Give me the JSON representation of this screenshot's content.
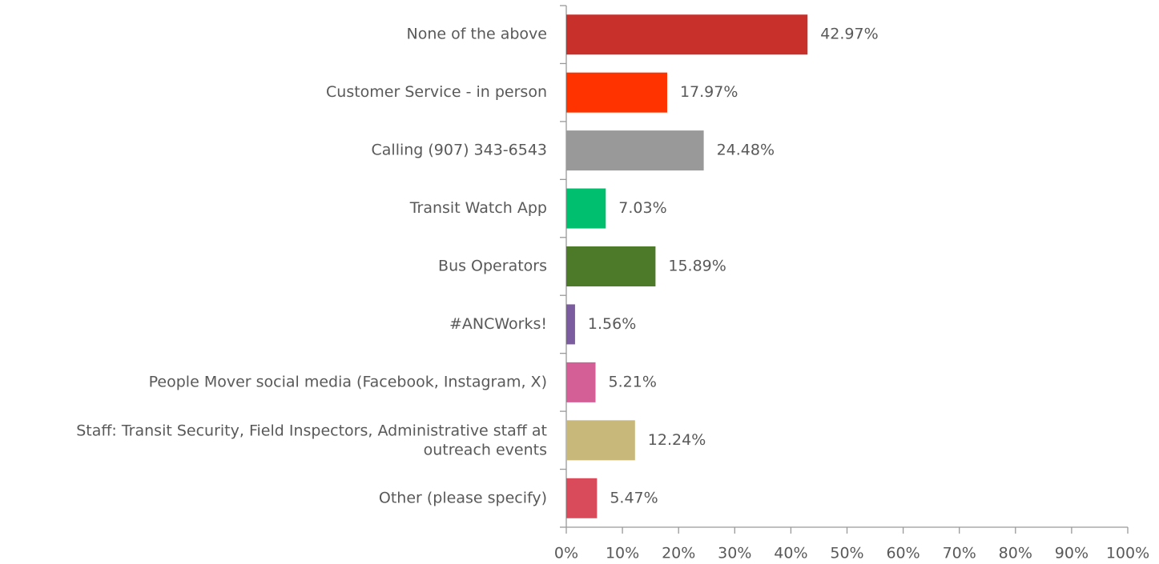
{
  "chart_data": {
    "type": "bar",
    "orientation": "horizontal",
    "categories": [
      "None of the above",
      "Customer Service - in person",
      "Calling (907) 343-6543",
      "Transit Watch App",
      "Bus Operators",
      "#ANCWorks!",
      "People Mover social media (Facebook, Instagram, X)",
      "Staff: Transit Security, Field Inspectors, Administrative staff at outreach events",
      "Other (please specify)"
    ],
    "values": [
      42.97,
      17.97,
      24.48,
      7.03,
      15.89,
      1.56,
      5.21,
      12.24,
      5.47
    ],
    "value_labels": [
      "42.97%",
      "17.97%",
      "24.48%",
      "7.03%",
      "15.89%",
      "1.56%",
      "5.21%",
      "12.24%",
      "5.47%"
    ],
    "colors": [
      "#c8312b",
      "#ff3300",
      "#999999",
      "#00bf6f",
      "#4d7a28",
      "#7b5c9e",
      "#d45f97",
      "#c8b87a",
      "#d94a5a"
    ],
    "xlim": [
      0,
      100
    ],
    "xticks": [
      {
        "value": 0,
        "label": "0%"
      },
      {
        "value": 10,
        "label": "10%"
      },
      {
        "value": 20,
        "label": "20%"
      },
      {
        "value": 30,
        "label": "30%"
      },
      {
        "value": 40,
        "label": "40%"
      },
      {
        "value": 50,
        "label": "50%"
      },
      {
        "value": 60,
        "label": "60%"
      },
      {
        "value": 70,
        "label": "70%"
      },
      {
        "value": 80,
        "label": "80%"
      },
      {
        "value": 90,
        "label": "90%"
      },
      {
        "value": 100,
        "label": "100%"
      }
    ],
    "grid": false
  }
}
